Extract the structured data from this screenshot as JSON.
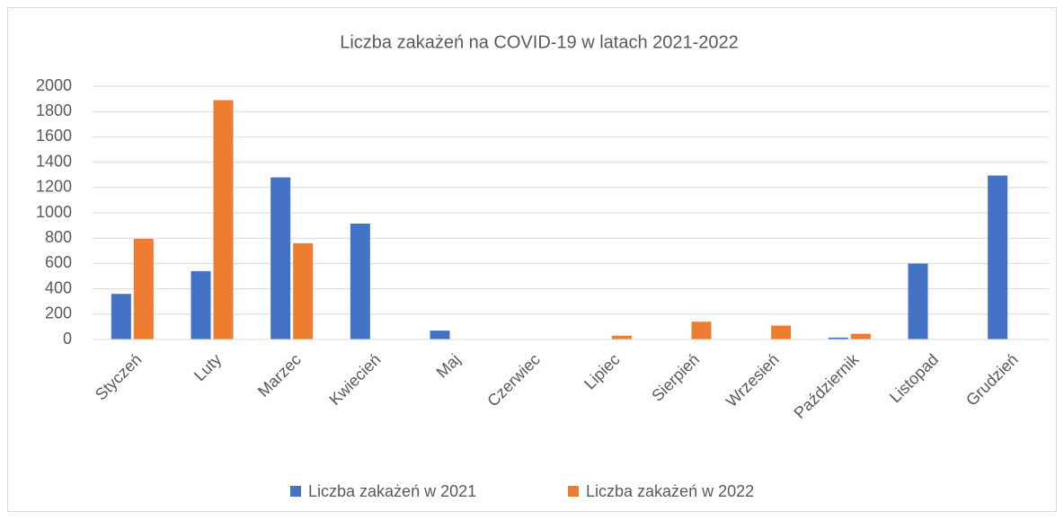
{
  "chart_data": {
    "type": "bar",
    "title": "Liczba zakażeń na COVID-19 w latach 2021-2022",
    "categories": [
      "Styczeń",
      "Luty",
      "Marzec",
      "Kwiecień",
      "Maj",
      "Czerwiec",
      "Lipiec",
      "Sierpień",
      "Wrzesień",
      "Październik",
      "Listopad",
      "Grudzień"
    ],
    "series": [
      {
        "name": "Liczba zakażeń w 2021",
        "color": "#4472c4",
        "values": [
          360,
          540,
          1280,
          915,
          70,
          0,
          0,
          0,
          0,
          15,
          600,
          1295
        ]
      },
      {
        "name": "Liczba zakażeń w 2022",
        "color": "#ed7d31",
        "values": [
          795,
          1890,
          760,
          0,
          0,
          0,
          30,
          140,
          110,
          45,
          0,
          0
        ]
      }
    ],
    "ylim": [
      0,
      2000
    ],
    "yticks": [
      0,
      200,
      400,
      600,
      800,
      1000,
      1200,
      1400,
      1600,
      1800,
      2000
    ],
    "grid": true,
    "legend": "bottom"
  }
}
